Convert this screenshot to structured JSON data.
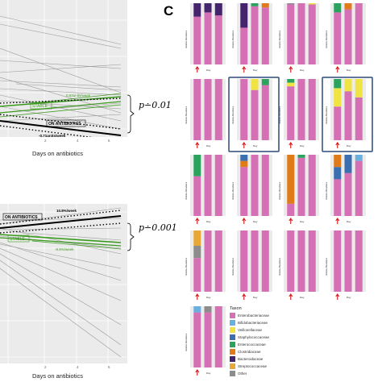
{
  "panel_c": {
    "letter": "C"
  },
  "panel_top": {
    "annotations": {
      "up": "0.63units/week",
      "stable": "STABLE",
      "on_abx": "ON ANTIBIOTICS",
      "down": "-0.71units/week"
    },
    "pvalue": "p∸0.01",
    "xlabel": "Days on antibiotics",
    "ticks": [
      "2",
      "4",
      "6"
    ]
  },
  "panel_bottom": {
    "annotations": {
      "up": "10.8%/week",
      "on_abx": "ON ANTIBIOTICS",
      "stable": "STABLE",
      "down": "-9.9%/week"
    },
    "pvalue": "p∸0.001",
    "xlabel": "Days on antibiotics",
    "ticks": [
      "2",
      "4",
      "6"
    ]
  },
  "taxa_legend": {
    "title": "Taxon",
    "items": [
      {
        "name": "Enterobacteriaceae",
        "color": "#d670b4"
      },
      {
        "name": "Bifidobacteriaceae",
        "color": "#6ab0de"
      },
      {
        "name": "Veillonellaceae",
        "color": "#f0e442"
      },
      {
        "name": "Staphylococcaceae",
        "color": "#3b6fb0"
      },
      {
        "name": "Enterococcaceae",
        "color": "#2ca25f"
      },
      {
        "name": "Clostridiaceae",
        "color": "#e07b1a"
      },
      {
        "name": "Bacteroidaceae",
        "color": "#45246e"
      },
      {
        "name": "Streptococcaceae",
        "color": "#e8a838"
      },
      {
        "name": "Other",
        "color": "#8c8c8c"
      }
    ]
  },
  "chart_data": [
    {
      "type": "line",
      "panel": "top",
      "xlabel": "Days on antibiotics",
      "x_ticks": [
        2,
        4,
        6
      ],
      "annotations": [
        "0.63units/week",
        "STABLE",
        "ON ANTIBIOTICS",
        "-0.71units/week"
      ],
      "pvalue_label": "p∸0.01"
    },
    {
      "type": "line",
      "panel": "bottom",
      "xlabel": "Days on antibiotics",
      "x_ticks": [
        2,
        4,
        6
      ],
      "annotations": [
        "10.8%/week",
        "ON ANTIBIOTICS",
        "STABLE",
        "-9.9%/week"
      ],
      "pvalue_label": "p∸0.001"
    },
    {
      "type": "bar",
      "panel": "C",
      "stacked": true,
      "ylabel": "Relative Abundance",
      "xlabel": "Day",
      "legend_title": "Taxon",
      "legend_position": "right",
      "panels": [
        {
          "bars": [
            [
              [
                "Enterobacteriaceae",
                0.78
              ],
              [
                "Bacteroidaceae",
                0.22
              ]
            ],
            [
              [
                "Enterobacteriaceae",
                0.85
              ],
              [
                "Bacteroidaceae",
                0.15
              ]
            ],
            [
              [
                "Enterobacteriaceae",
                0.8
              ],
              [
                "Bacteroidaceae",
                0.2
              ]
            ]
          ]
        },
        {
          "bars": [
            [
              [
                "Enterobacteriaceae",
                0.6
              ],
              [
                "Bacteroidaceae",
                0.4
              ]
            ],
            [
              [
                "Enterobacteriaceae",
                0.95
              ],
              [
                "Enterococcaceae",
                0.05
              ]
            ],
            [
              [
                "Enterobacteriaceae",
                0.93
              ],
              [
                "Clostridiaceae",
                0.07
              ]
            ]
          ]
        },
        {
          "bars": [
            [
              [
                "Enterobacteriaceae",
                0.98
              ],
              [
                "Other",
                0.02
              ]
            ],
            [
              [
                "Enterobacteriaceae",
                1.0
              ]
            ],
            [
              [
                "Enterobacteriaceae",
                0.98
              ],
              [
                "Veillonellaceae",
                0.02
              ]
            ]
          ]
        },
        {
          "bars": [
            [
              [
                "Enterobacteriaceae",
                0.85
              ],
              [
                "Enterococcaceae",
                0.15
              ]
            ],
            [
              [
                "Enterobacteriaceae",
                0.9
              ],
              [
                "Clostridiaceae",
                0.1
              ]
            ],
            [
              [
                "Enterobacteriaceae",
                1.0
              ]
            ]
          ]
        },
        {
          "bars": [
            [
              [
                "Enterobacteriaceae",
                1.0
              ]
            ],
            [
              [
                "Enterobacteriaceae",
                1.0
              ]
            ],
            [
              [
                "Enterobacteriaceae",
                1.0
              ]
            ]
          ]
        },
        {
          "bars": [
            [
              [
                "Enterobacteriaceae",
                1.0
              ]
            ],
            [
              [
                "Enterobacteriaceae",
                0.82
              ],
              [
                "Veillonellaceae",
                0.18
              ]
            ],
            [
              [
                "Enterobacteriaceae",
                0.9
              ],
              [
                "Enterococcaceae",
                0.1
              ]
            ]
          ]
        },
        {
          "bars": [
            [
              [
                "Enterobacteriaceae",
                0.88
              ],
              [
                "Veillonellaceae",
                0.06
              ],
              [
                "Enterococcaceae",
                0.06
              ]
            ],
            [
              [
                "Enterobacteriaceae",
                1.0
              ]
            ],
            [
              [
                "Enterobacteriaceae",
                1.0
              ]
            ]
          ]
        },
        {
          "bars": [
            [
              [
                "Enterobacteriaceae",
                0.55
              ],
              [
                "Veillonellaceae",
                0.3
              ],
              [
                "Enterococcaceae",
                0.15
              ]
            ],
            [
              [
                "Enterobacteriaceae",
                0.8
              ],
              [
                "Veillonellaceae",
                0.2
              ]
            ],
            [
              [
                "Enterobacteriaceae",
                0.7
              ],
              [
                "Veillonellaceae",
                0.3
              ]
            ]
          ]
        },
        {
          "bars": [
            [
              [
                "Enterobacteriaceae",
                0.65
              ],
              [
                "Enterococcaceae",
                0.35
              ]
            ],
            [
              [
                "Enterobacteriaceae",
                1.0
              ]
            ],
            [
              [
                "Enterobacteriaceae",
                1.0
              ]
            ]
          ]
        },
        {
          "bars": [
            [
              [
                "Enterobacteriaceae",
                0.8
              ],
              [
                "Clostridiaceae",
                0.1
              ],
              [
                "Staphylococcaceae",
                0.1
              ]
            ],
            [
              [
                "Enterobacteriaceae",
                1.0
              ]
            ],
            [
              [
                "Enterobacteriaceae",
                1.0
              ]
            ]
          ]
        },
        {
          "bars": [
            [
              [
                "Enterobacteriaceae",
                0.2
              ],
              [
                "Clostridiaceae",
                0.8
              ]
            ],
            [
              [
                "Enterobacteriaceae",
                0.95
              ],
              [
                "Enterococcaceae",
                0.05
              ]
            ],
            [
              [
                "Enterobacteriaceae",
                1.0
              ]
            ]
          ]
        },
        {
          "bars": [
            [
              [
                "Enterobacteriaceae",
                0.6
              ],
              [
                "Staphylococcaceae",
                0.2
              ],
              [
                "Clostridiaceae",
                0.2
              ]
            ],
            [
              [
                "Enterobacteriaceae",
                0.7
              ],
              [
                "Staphylococcaceae",
                0.3
              ]
            ],
            [
              [
                "Enterobacteriaceae",
                0.9
              ],
              [
                "Bifidobacteriaceae",
                0.1
              ]
            ]
          ]
        },
        {
          "bars": [
            [
              [
                "Enterobacteriaceae",
                0.55
              ],
              [
                "Other",
                0.2
              ],
              [
                "Streptococcaceae",
                0.25
              ]
            ],
            [
              [
                "Enterobacteriaceae",
                1.0
              ]
            ],
            [
              [
                "Enterobacteriaceae",
                1.0
              ]
            ]
          ]
        },
        {
          "bars": [
            [
              [
                "Enterobacteriaceae",
                1.0
              ]
            ],
            [
              [
                "Enterobacteriaceae",
                1.0
              ]
            ],
            [
              [
                "Enterobacteriaceae",
                1.0
              ]
            ]
          ]
        },
        {
          "bars": [
            [
              [
                "Enterobacteriaceae",
                1.0
              ]
            ],
            [
              [
                "Enterobacteriaceae",
                1.0
              ]
            ],
            [
              [
                "Enterobacteriaceae",
                1.0
              ]
            ]
          ]
        },
        {
          "bars": [
            [
              [
                "Enterobacteriaceae",
                1.0
              ]
            ],
            [
              [
                "Enterobacteriaceae",
                1.0
              ]
            ],
            [
              [
                "Enterobacteriaceae",
                1.0
              ]
            ]
          ]
        },
        {
          "bars": [
            [
              [
                "Enterobacteriaceae",
                0.9
              ],
              [
                "Bifidobacteriaceae",
                0.1
              ]
            ],
            [
              [
                "Enterobacteriaceae",
                0.9
              ],
              [
                "Other",
                0.1
              ]
            ],
            [
              [
                "Enterobacteriaceae",
                1.0
              ]
            ]
          ]
        }
      ]
    }
  ]
}
